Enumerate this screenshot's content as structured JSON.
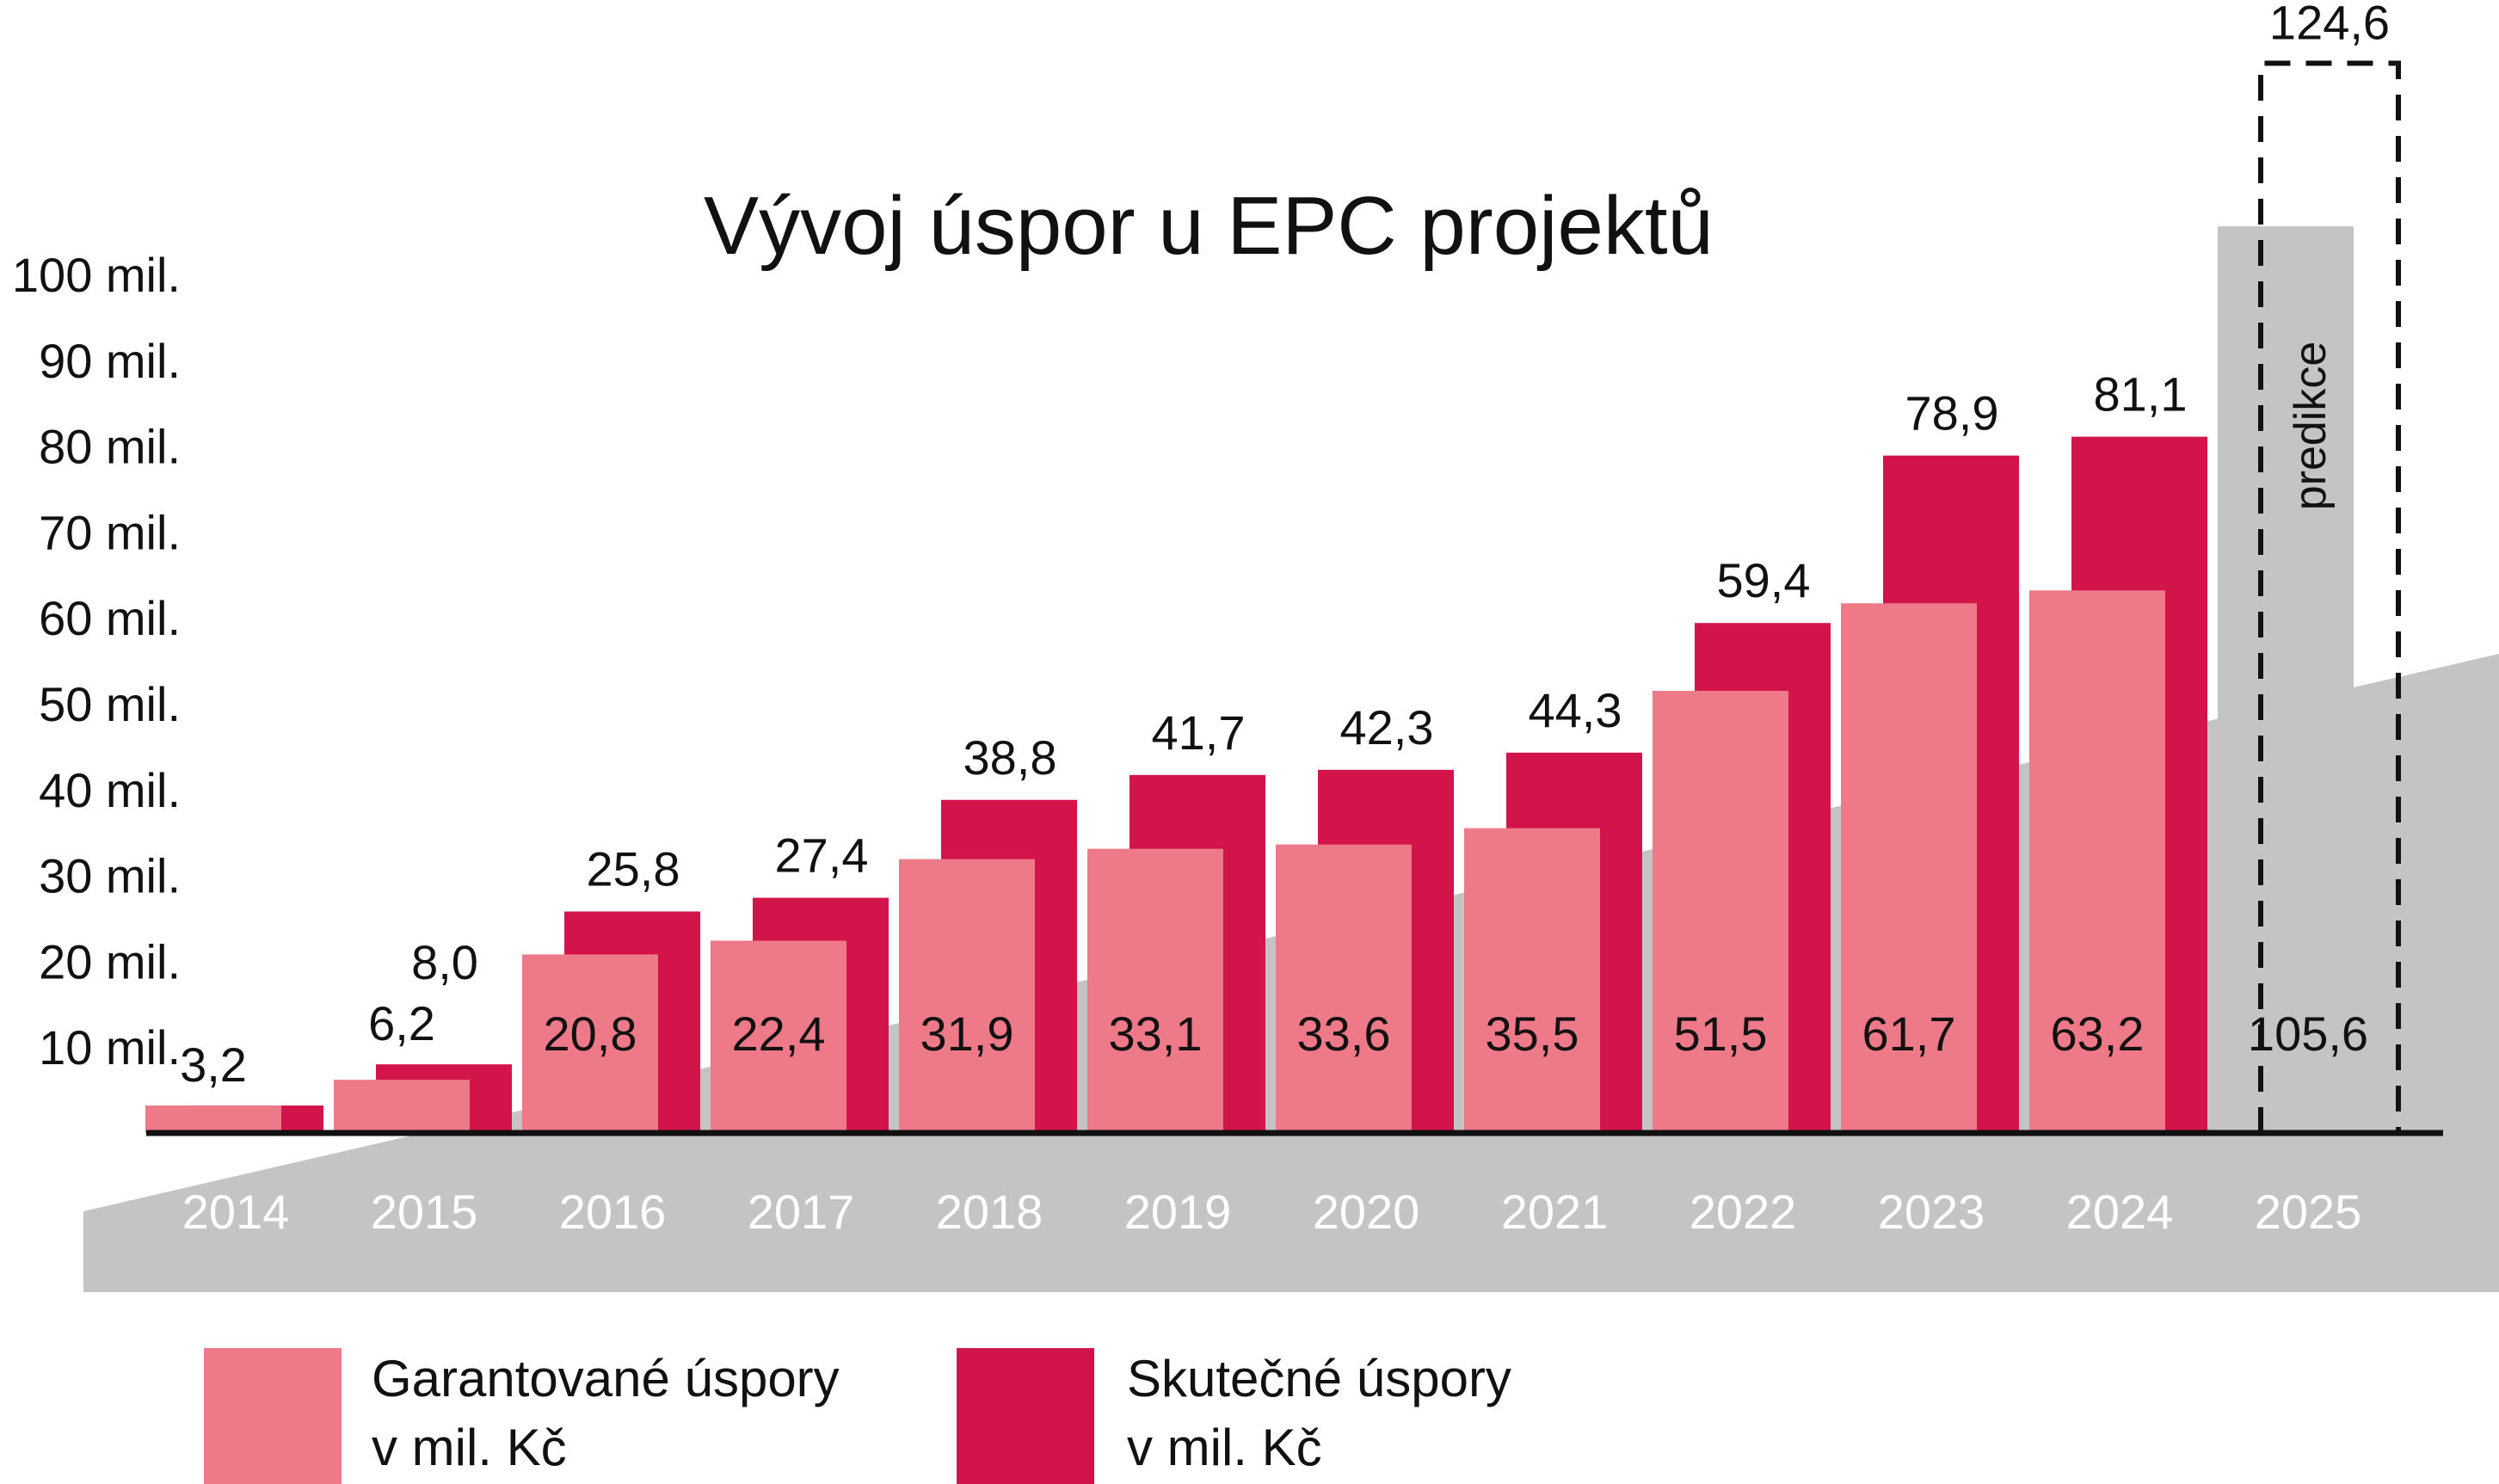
{
  "colors": {
    "guaranteed": "#ee7a89",
    "actual": "#d2144a",
    "background_band": "#c4c4c4",
    "year_label": "#ffffff",
    "text": "#111111"
  },
  "chart_data": {
    "type": "bar",
    "title": "Vývoj úspor u EPC projektů",
    "categories": [
      "2014",
      "2015",
      "2016",
      "2017",
      "2018",
      "2019",
      "2020",
      "2021",
      "2022",
      "2023",
      "2024",
      "2025"
    ],
    "series": [
      {
        "name": "Garantované úspory v mil. Kč",
        "values": [
          3.2,
          6.2,
          20.8,
          22.4,
          31.9,
          33.1,
          33.6,
          35.5,
          51.5,
          61.7,
          63.2,
          null
        ],
        "labels": [
          "3,2",
          "6,2",
          "20,8",
          "22,4",
          "31,9",
          "33,1",
          "33,6",
          "35,5",
          "51,5",
          "61,7",
          "63,2",
          ""
        ]
      },
      {
        "name": "Skutečné úspory v mil. Kč",
        "values": [
          3.2,
          8.0,
          25.8,
          27.4,
          38.8,
          41.7,
          42.3,
          44.3,
          59.4,
          78.9,
          81.1,
          null
        ],
        "labels": [
          "",
          "8,0",
          "25,8",
          "27,4",
          "38,8",
          "41,7",
          "42,3",
          "44,3",
          "59,4",
          "78,9",
          "81,1",
          ""
        ]
      }
    ],
    "prediction": {
      "category": "2025",
      "label": "predikce",
      "value": 105.6,
      "value_label": "105,6",
      "upper_value": 124.6,
      "upper_label": "124,6"
    },
    "y_ticks": [
      "10 mil.",
      "20 mil.",
      "30 mil.",
      "40 mil.",
      "50 mil.",
      "60 mil.",
      "70 mil.",
      "80 mil.",
      "90 mil.",
      "100 mil."
    ],
    "ylim": [
      0,
      100
    ],
    "grid": false,
    "legend_position": "bottom-left"
  },
  "legend": {
    "guaranteed": {
      "line1": "Garantované úspory",
      "line2": "v mil. Kč"
    },
    "actual": {
      "line1": "Skutečné úspory",
      "line2": "v mil. Kč"
    }
  }
}
